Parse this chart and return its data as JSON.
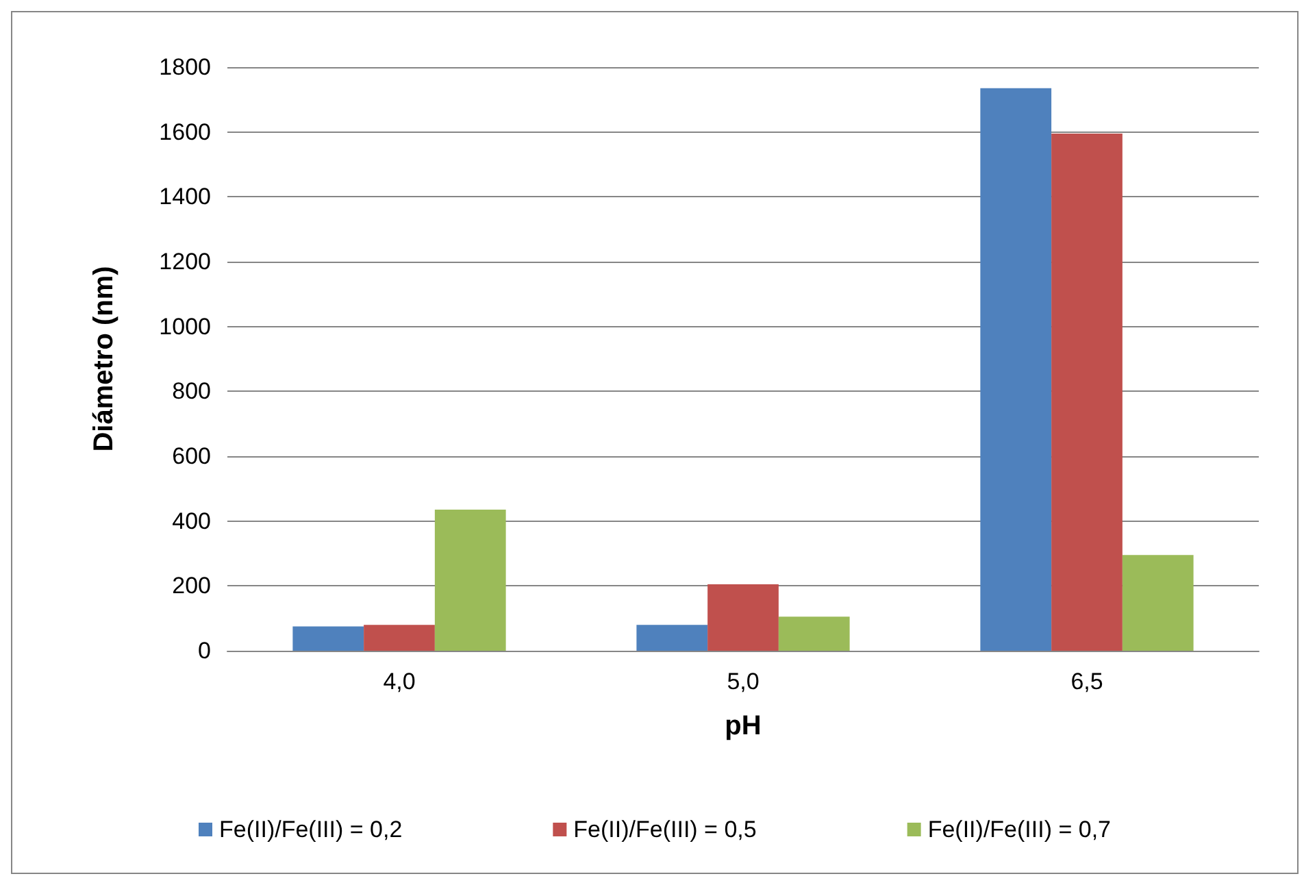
{
  "chart_data": {
    "type": "bar",
    "xlabel": "pH",
    "ylabel": "Diámetro (nm)",
    "categories": [
      "4,0",
      "5,0",
      "6,5"
    ],
    "series": [
      {
        "name": "Fe(II)/Fe(III) = 0,2",
        "color": "#4f81bd",
        "values": [
          75,
          80,
          1735
        ]
      },
      {
        "name": "Fe(II)/Fe(III) = 0,5",
        "color": "#c0504d",
        "values": [
          80,
          205,
          1595
        ]
      },
      {
        "name": "Fe(II)/Fe(III) = 0,7",
        "color": "#9bbb59",
        "values": [
          435,
          105,
          295
        ]
      }
    ],
    "ylim": [
      0,
      1800
    ],
    "yticks": [
      0,
      200,
      400,
      600,
      800,
      1000,
      1200,
      1400,
      1600,
      1800
    ],
    "grid": "y",
    "legend": "bottom"
  }
}
